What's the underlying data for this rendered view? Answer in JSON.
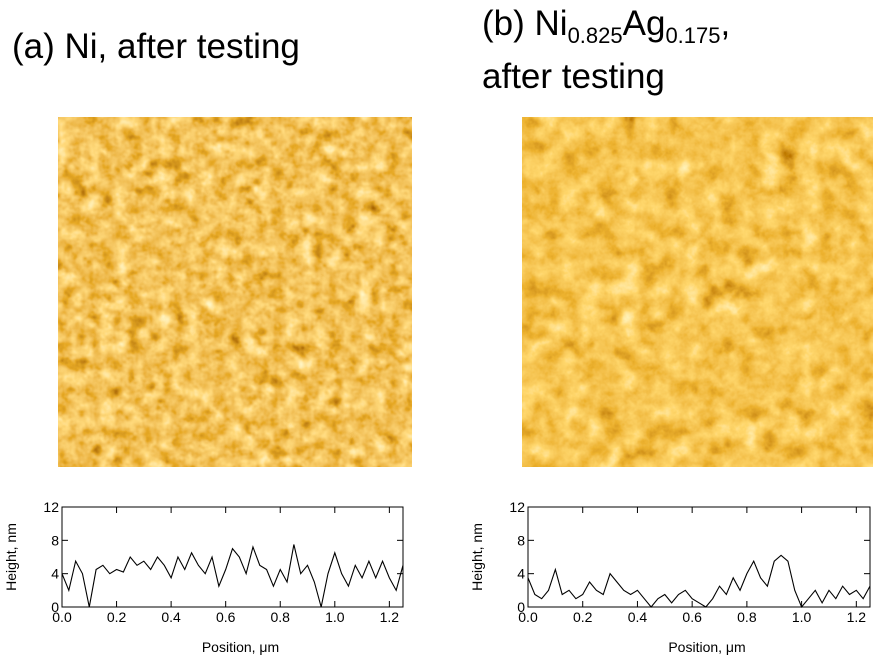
{
  "chart_data": [
    {
      "type": "line",
      "title": [
        {
          "text": "(a) Ni, after testing"
        }
      ],
      "x_label": "Position, μm",
      "y_label": "Height, nm",
      "xlim": [
        0,
        1.25
      ],
      "ylim": [
        0,
        12
      ],
      "xticks": [
        {
          "value": 0,
          "label": "0.0"
        },
        0.2,
        0.4,
        0.6,
        0.8,
        {
          "value": 1,
          "label": "1.0"
        },
        1.2
      ],
      "yticks": [
        0,
        4,
        8,
        12
      ],
      "color": "#000000",
      "x": [
        0,
        0.025,
        0.05,
        0.075,
        0.1,
        0.125,
        0.15,
        0.175,
        0.2,
        0.225,
        0.25,
        0.275,
        0.3,
        0.325,
        0.35,
        0.375,
        0.4,
        0.425,
        0.45,
        0.475,
        0.5,
        0.525,
        0.55,
        0.575,
        0.6,
        0.625,
        0.65,
        0.675,
        0.7,
        0.725,
        0.75,
        0.775,
        0.8,
        0.825,
        0.85,
        0.875,
        0.9,
        0.925,
        0.95,
        0.975,
        1,
        1.025,
        1.05,
        1.075,
        1.1,
        1.125,
        1.15,
        1.175,
        1.2,
        1.225,
        1.25
      ],
      "values": [
        4,
        2,
        5.5,
        4,
        0,
        4.5,
        5,
        4,
        4.5,
        4.2,
        6,
        5,
        5.5,
        4.5,
        6,
        5,
        3.5,
        6,
        4.5,
        6.5,
        5,
        4,
        6,
        2.5,
        4.5,
        7,
        6,
        4,
        7.2,
        5,
        4.5,
        2.5,
        4.5,
        3,
        7.5,
        4,
        5,
        3,
        0,
        4,
        6.5,
        4,
        2.5,
        5,
        3.5,
        5.5,
        3.5,
        5.5,
        3.5,
        2,
        5
      ]
    },
    {
      "type": "line",
      "title": [
        {
          "text": "(b) Ni"
        },
        {
          "text": "0.825",
          "sub": true
        },
        {
          "text": "Ag"
        },
        {
          "text": "0.175",
          "sub": true
        },
        {
          "text": ","
        }
      ],
      "subtitle": "after testing",
      "x_label": "Position, μm",
      "y_label": "Height, nm",
      "xlim": [
        0,
        1.25
      ],
      "ylim": [
        0,
        12
      ],
      "xticks": [
        {
          "value": 0,
          "label": "0.0"
        },
        0.2,
        0.4,
        0.6,
        0.8,
        {
          "value": 1,
          "label": "1.0"
        },
        1.2
      ],
      "yticks": [
        0,
        4,
        8,
        12
      ],
      "color": "#000000",
      "x": [
        0,
        0.025,
        0.05,
        0.075,
        0.1,
        0.125,
        0.15,
        0.175,
        0.2,
        0.225,
        0.25,
        0.275,
        0.3,
        0.325,
        0.35,
        0.375,
        0.4,
        0.425,
        0.45,
        0.475,
        0.5,
        0.525,
        0.55,
        0.575,
        0.6,
        0.625,
        0.65,
        0.675,
        0.7,
        0.725,
        0.75,
        0.775,
        0.8,
        0.825,
        0.85,
        0.875,
        0.9,
        0.925,
        0.95,
        0.975,
        1,
        1.025,
        1.05,
        1.075,
        1.1,
        1.125,
        1.15,
        1.175,
        1.2,
        1.225,
        1.25
      ],
      "values": [
        3.5,
        1.5,
        1,
        2,
        4.5,
        1.5,
        2,
        1,
        1.5,
        3,
        2,
        1.5,
        4,
        3,
        2,
        1.5,
        2,
        1,
        0,
        1,
        1.5,
        0.5,
        1.5,
        2,
        1,
        0.5,
        0,
        1,
        2.5,
        1.5,
        3.5,
        2,
        4,
        5.5,
        3.5,
        2.5,
        5.5,
        6.2,
        5.5,
        2,
        0,
        1,
        2,
        0.5,
        2,
        1,
        2.5,
        1.5,
        2,
        1,
        2.5
      ]
    }
  ]
}
